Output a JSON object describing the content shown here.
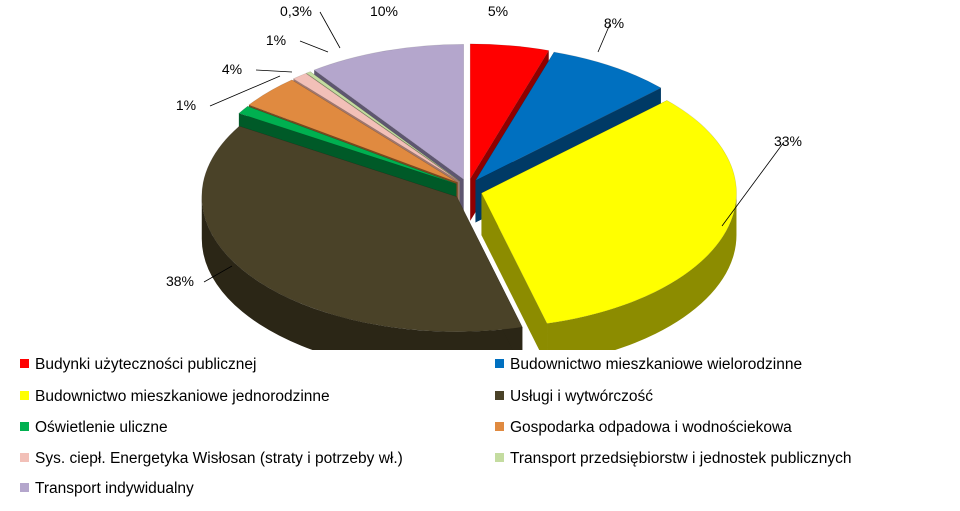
{
  "chart_data": {
    "type": "pie",
    "title": "",
    "slices": [
      {
        "label": "Budynki użyteczności publicznej",
        "value": 5,
        "display": "5%",
        "color": "#ff0000",
        "dark": "#8f0000"
      },
      {
        "label": "Budownictwo mieszkaniowe wielorodzinne",
        "value": 8,
        "display": "8%",
        "color": "#0070c0",
        "dark": "#003a66"
      },
      {
        "label": "Budownictwo mieszkaniowe jednorodzinne",
        "value": 33,
        "display": "33%",
        "color": "#ffff00",
        "dark": "#8c8c00"
      },
      {
        "label": "Usługi i wytwórczość",
        "value": 38,
        "display": "38%",
        "color": "#4a4228",
        "dark": "#2b2616"
      },
      {
        "label": "Oświetlenie uliczne",
        "value": 1,
        "display": "1%",
        "color": "#00b050",
        "dark": "#005a28"
      },
      {
        "label": "Gospodarka odpadowa i wodnościekowa",
        "value": 4,
        "display": "4%",
        "color": "#e08a40",
        "dark": "#7a4a1e"
      },
      {
        "label": "Sys. ciepł. Energetyka Wisłosan (straty i potrzeby wł.)",
        "value": 1,
        "display": "1%",
        "color": "#f2c0b8",
        "dark": "#a07870"
      },
      {
        "label": "Transport przedsiębiorstw i jednostek publicznych",
        "value": 0.3,
        "display": "0,3%",
        "color": "#c4dca0",
        "dark": "#7a8a60"
      },
      {
        "label": "Transport indywidualny",
        "value": 10,
        "display": "10%",
        "color": "#b4a6cc",
        "dark": "#5e5670"
      }
    ],
    "legend_position": "bottom"
  }
}
